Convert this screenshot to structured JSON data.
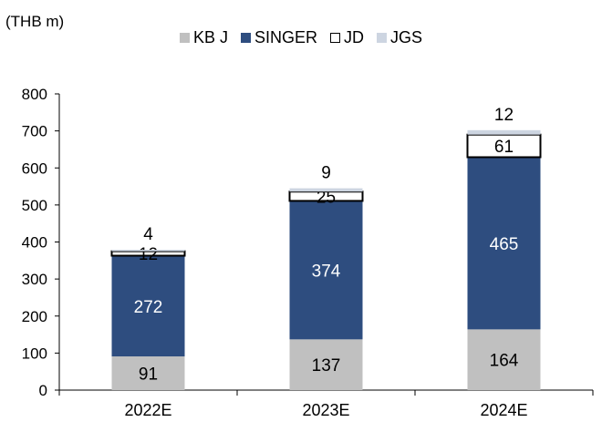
{
  "chart_data": {
    "type": "bar",
    "stacked": true,
    "unit_label": "(THB m)",
    "categories": [
      "2022E",
      "2023E",
      "2024E"
    ],
    "series": [
      {
        "name": "KB J",
        "values": [
          91,
          137,
          164
        ],
        "color": "#c0c0c0",
        "label_color": "#000000"
      },
      {
        "name": "SINGER",
        "values": [
          272,
          374,
          465
        ],
        "color": "#2e4d7f",
        "label_color": "#ffffff"
      },
      {
        "name": "JD",
        "values": [
          12,
          25,
          61
        ],
        "color": "#ffffff",
        "label_color": "#000000"
      },
      {
        "name": "JGS",
        "values": [
          4,
          9,
          12
        ],
        "color": "#cdd5e1",
        "label_color": "#000000"
      }
    ],
    "ylim": [
      0,
      800
    ],
    "yticks": [
      0,
      100,
      200,
      300,
      400,
      500,
      600,
      700,
      800
    ],
    "legend_position": "top-center",
    "grid": false
  }
}
